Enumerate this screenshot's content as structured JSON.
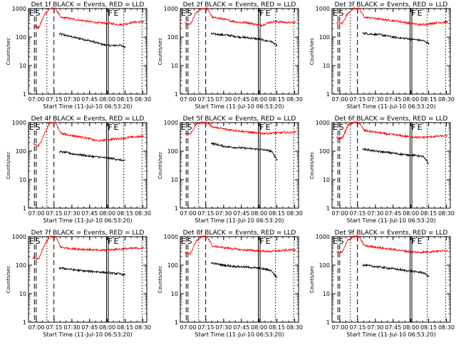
{
  "colors": {
    "background": "#ffffff",
    "axes": "#000000",
    "events": "#000000",
    "lld": "#ff0000"
  },
  "common": {
    "ylabel": "Counts/sec",
    "xlabel": "Start Time (11-Jul-10 06:53:20)",
    "xtick_labels": [
      "07:00",
      "07:15",
      "07:30",
      "07:45",
      "08:00",
      "08:15",
      "08:30"
    ],
    "xtick_minutes": [
      6.67,
      21.67,
      36.67,
      51.67,
      66.67,
      81.67,
      96.67
    ],
    "xlim_minutes": [
      0,
      100
    ],
    "ytick_labels": [
      "1",
      "10",
      "100",
      "1000"
    ],
    "ylim": [
      1,
      1000
    ],
    "yscale": "log",
    "flag_E_S": "E S",
    "flag_F": "F",
    "flag_E": "E"
  },
  "chart_data": [
    {
      "type": "line",
      "title": "Det 1f BLACK = Events, RED = LLD",
      "x_range": [
        5,
        6.5,
        15.5,
        21.5,
        66,
        67.5,
        80.5,
        96
      ],
      "series": [
        {
          "name": "Events",
          "start": 26,
          "end": 82,
          "values": [
            130,
            115,
            100,
            90,
            80,
            70,
            60,
            52,
            50,
            52,
            45
          ]
        },
        {
          "name": "LLD",
          "start": 4,
          "end": 98,
          "values": [
            250,
            210,
            600,
            1000,
            1000,
            480,
            470,
            430,
            400,
            380,
            350,
            330,
            310,
            310,
            300,
            280,
            270,
            300,
            330,
            340,
            350
          ]
        }
      ]
    },
    {
      "type": "line",
      "title": "Det 2f BLACK = Events, RED = LLD",
      "x_range": [
        5,
        6.5,
        15.5,
        21.5,
        66,
        67.5,
        80.5,
        96
      ],
      "series": [
        {
          "name": "Events",
          "start": 26,
          "end": 82,
          "values": [
            130,
            125,
            120,
            115,
            105,
            100,
            95,
            90,
            85,
            75,
            70,
            50
          ]
        },
        {
          "name": "LLD",
          "start": 4,
          "end": 98,
          "values": [
            300,
            280,
            700,
            1000,
            1000,
            480,
            460,
            420,
            380,
            350,
            320,
            330,
            300,
            270,
            260,
            320,
            350,
            340,
            330,
            320,
            330
          ]
        }
      ]
    },
    {
      "type": "line",
      "title": "Det 3f BLACK = Events, RED = LLD",
      "x_range": [
        5,
        6.5,
        15.5,
        21.5,
        66,
        67.5,
        80.5,
        96
      ],
      "series": [
        {
          "name": "Events",
          "start": 26,
          "end": 82,
          "values": [
            140,
            130,
            125,
            120,
            110,
            100,
            95,
            90,
            85,
            80,
            75,
            60
          ]
        },
        {
          "name": "LLD",
          "start": 4,
          "end": 98,
          "values": [
            320,
            300,
            700,
            1000,
            1000,
            490,
            480,
            450,
            420,
            400,
            380,
            360,
            330,
            310,
            290,
            270,
            280,
            300,
            320,
            330,
            340
          ]
        }
      ]
    },
    {
      "type": "line",
      "title": "Det 4f BLACK = Events, RED = LLD",
      "x_range": [
        5,
        6.5,
        15.5,
        21.5,
        66,
        67.5,
        80.5,
        96
      ],
      "series": [
        {
          "name": "Events",
          "start": 26,
          "end": 82,
          "values": [
            95,
            90,
            80,
            75,
            70,
            65,
            62,
            58,
            55,
            50,
            45
          ]
        },
        {
          "name": "LLD",
          "start": 4,
          "end": 98,
          "values": [
            180,
            150,
            400,
            1000,
            1000,
            420,
            380,
            350,
            330,
            300,
            280,
            240,
            230,
            250,
            260,
            270,
            280,
            300,
            310,
            320,
            330
          ]
        }
      ]
    },
    {
      "type": "line",
      "title": "Det 5f BLACK = Events, RED = LLD",
      "x_range": [
        5,
        6.5,
        15.5,
        21.5,
        66,
        67.5,
        80.5,
        96
      ],
      "series": [
        {
          "name": "Events",
          "start": 26,
          "end": 82,
          "values": [
            190,
            170,
            150,
            140,
            135,
            130,
            125,
            120,
            115,
            110,
            100,
            50
          ]
        },
        {
          "name": "LLD",
          "start": 4,
          "end": 98,
          "values": [
            420,
            400,
            900,
            1000,
            1000,
            700,
            650,
            600,
            560,
            530,
            500,
            480,
            450,
            430,
            420,
            420,
            430,
            440,
            450,
            450,
            470
          ]
        }
      ]
    },
    {
      "type": "line",
      "title": "Det 6f BLACK = Events, RED = LLD",
      "x_range": [
        5,
        6.5,
        15.5,
        21.5,
        66,
        67.5,
        80.5,
        96
      ],
      "series": [
        {
          "name": "Events",
          "start": 26,
          "end": 82,
          "values": [
            120,
            110,
            100,
            95,
            90,
            85,
            80,
            75,
            72,
            70,
            65,
            35
          ]
        },
        {
          "name": "LLD",
          "start": 4,
          "end": 98,
          "values": [
            300,
            280,
            800,
            1000,
            1000,
            520,
            500,
            460,
            430,
            400,
            380,
            360,
            340,
            320,
            310,
            300,
            310,
            320,
            330,
            340,
            350
          ]
        }
      ]
    },
    {
      "type": "line",
      "title": "Det 7f BLACK = Events, RED = LLD",
      "x_range": [
        5,
        6.5,
        15.5,
        21.5,
        66,
        67.5,
        80.5,
        96
      ],
      "series": [
        {
          "name": "Events",
          "start": 26,
          "end": 82,
          "values": [
            80,
            75,
            70,
            65,
            62,
            60,
            58,
            55,
            52,
            50,
            45
          ]
        },
        {
          "name": "LLD",
          "start": 4,
          "end": 98,
          "values": [
            180,
            160,
            500,
            1000,
            1000,
            420,
            400,
            380,
            370,
            360,
            350,
            340,
            330,
            340,
            350,
            360,
            370,
            380,
            390,
            400,
            400
          ]
        }
      ]
    },
    {
      "type": "line",
      "title": "Det 8f BLACK = Events, RED = LLD",
      "x_range": [
        5,
        6.5,
        15.5,
        21.5,
        66,
        67.5,
        80.5,
        96
      ],
      "series": [
        {
          "name": "Events",
          "start": 26,
          "end": 82,
          "values": [
            120,
            110,
            100,
            95,
            90,
            88,
            85,
            82,
            78,
            72,
            65,
            35
          ]
        },
        {
          "name": "LLD",
          "start": 4,
          "end": 98,
          "values": [
            280,
            260,
            700,
            1000,
            1000,
            460,
            440,
            410,
            390,
            370,
            350,
            340,
            330,
            320,
            310,
            300,
            310,
            320,
            330,
            340,
            350
          ]
        }
      ]
    },
    {
      "type": "line",
      "title": "Det 9f BLACK = Events, RED = LLD",
      "x_range": [
        5,
        6.5,
        15.5,
        21.5,
        66,
        67.5,
        80.5,
        96
      ],
      "series": [
        {
          "name": "Events",
          "start": 26,
          "end": 82,
          "values": [
            100,
            95,
            90,
            85,
            80,
            75,
            70,
            65,
            62,
            58,
            55,
            40
          ]
        },
        {
          "name": "LLD",
          "start": 4,
          "end": 98,
          "values": [
            300,
            280,
            750,
            1000,
            1000,
            480,
            460,
            430,
            400,
            380,
            360,
            340,
            320,
            300,
            290,
            280,
            290,
            300,
            310,
            320,
            330
          ]
        }
      ]
    }
  ]
}
